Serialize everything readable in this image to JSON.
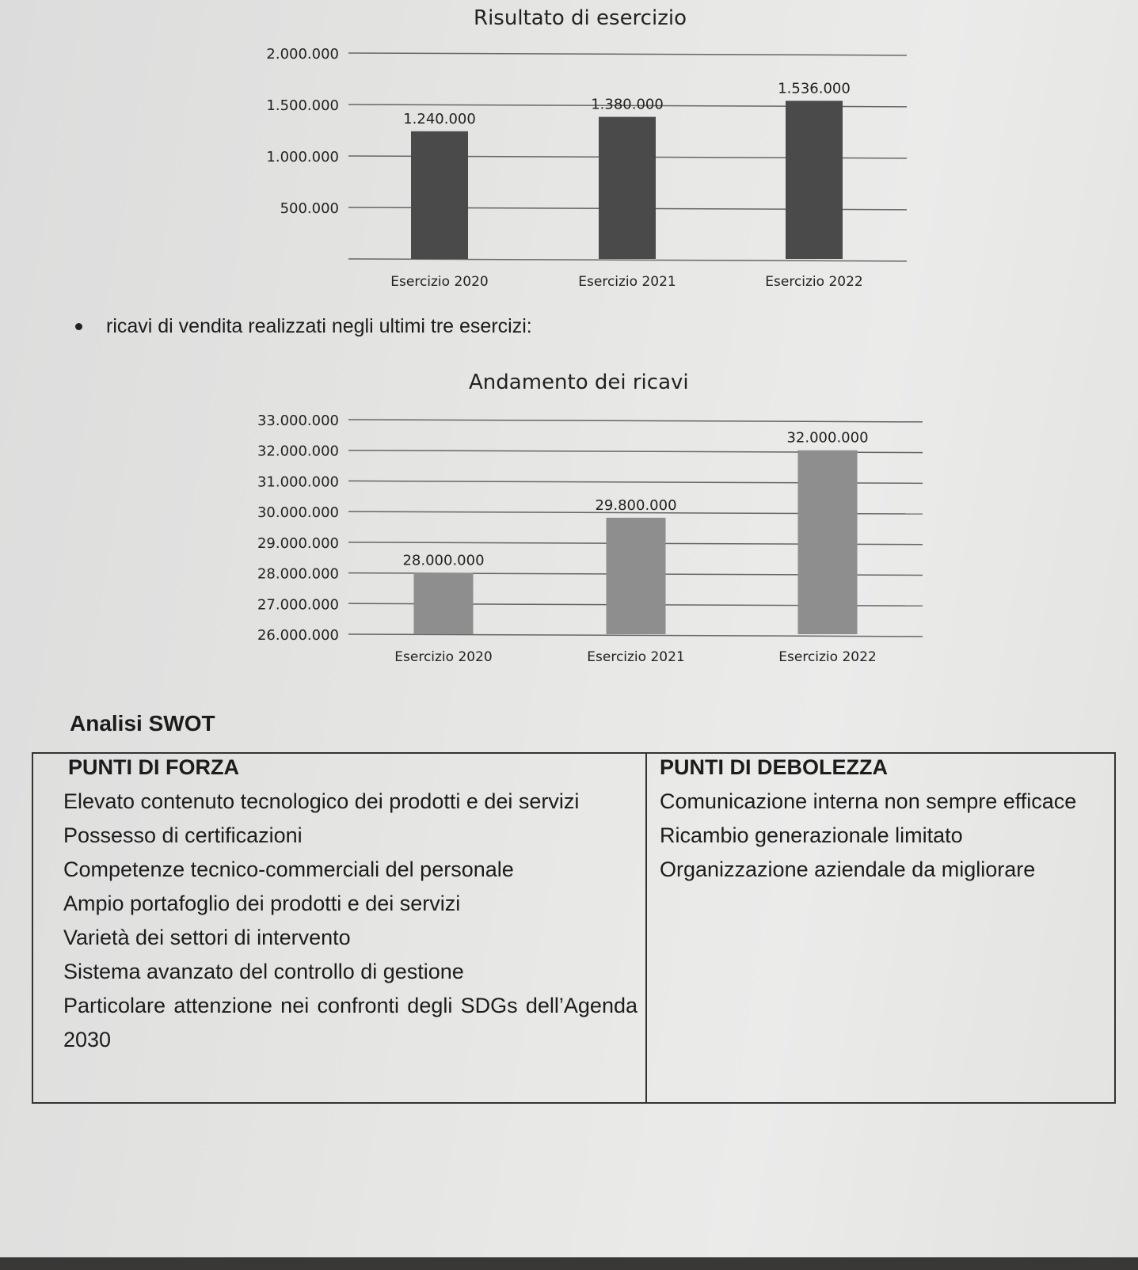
{
  "chart_data": [
    {
      "type": "bar",
      "title": "Risultato di esercizio",
      "categories": [
        "Esercizio 2020",
        "Esercizio 2021",
        "Esercizio 2022"
      ],
      "values": [
        1240000,
        1380000,
        1536000
      ],
      "data_labels": [
        "1.240.000",
        "1.380.000",
        "1.536.000"
      ],
      "ylim": [
        0,
        2000000
      ],
      "yticks": [
        "2.000.000",
        "1.500.000",
        "1.000.000",
        "500.000"
      ],
      "grid": true,
      "bar_color": "#4a4a4a"
    },
    {
      "type": "bar",
      "title": "Andamento dei ricavi",
      "categories": [
        "Esercizio 2020",
        "Esercizio 2021",
        "Esercizio 2022"
      ],
      "values": [
        28000000,
        29800000,
        32000000
      ],
      "data_labels": [
        "28.000.000",
        "29.800.000",
        "32.000.000"
      ],
      "ylim": [
        26000000,
        33000000
      ],
      "yticks": [
        "33.000.000",
        "32.000.000",
        "31.000.000",
        "30.000.000",
        "29.000.000",
        "28.000.000",
        "27.000.000",
        "26.000.000"
      ],
      "grid": true,
      "bar_color": "#8e8e8e"
    }
  ],
  "bullet_text": "ricavi di vendita realizzati negli ultimi tre esercizi:",
  "swot": {
    "title": "Analisi SWOT",
    "strengths_header": "PUNTI DI FORZA",
    "weaknesses_header": "PUNTI DI DEBOLEZZA",
    "strengths": [
      "Elevato contenuto tecnologico dei prodotti e dei servizi",
      "Possesso di certificazioni",
      "Competenze tecnico-commerciali del personale",
      "Ampio portafoglio dei prodotti e dei servizi",
      "Varietà dei settori di intervento",
      "Sistema avanzato del controllo di gestione",
      "Particolare attenzione nei confronti degli SDGs dell’Agenda 2030"
    ],
    "weaknesses": [
      "Comunicazione interna non sempre efficace",
      "Ricambio generazionale limitato",
      "Organizzazione aziendale da migliorare"
    ]
  }
}
